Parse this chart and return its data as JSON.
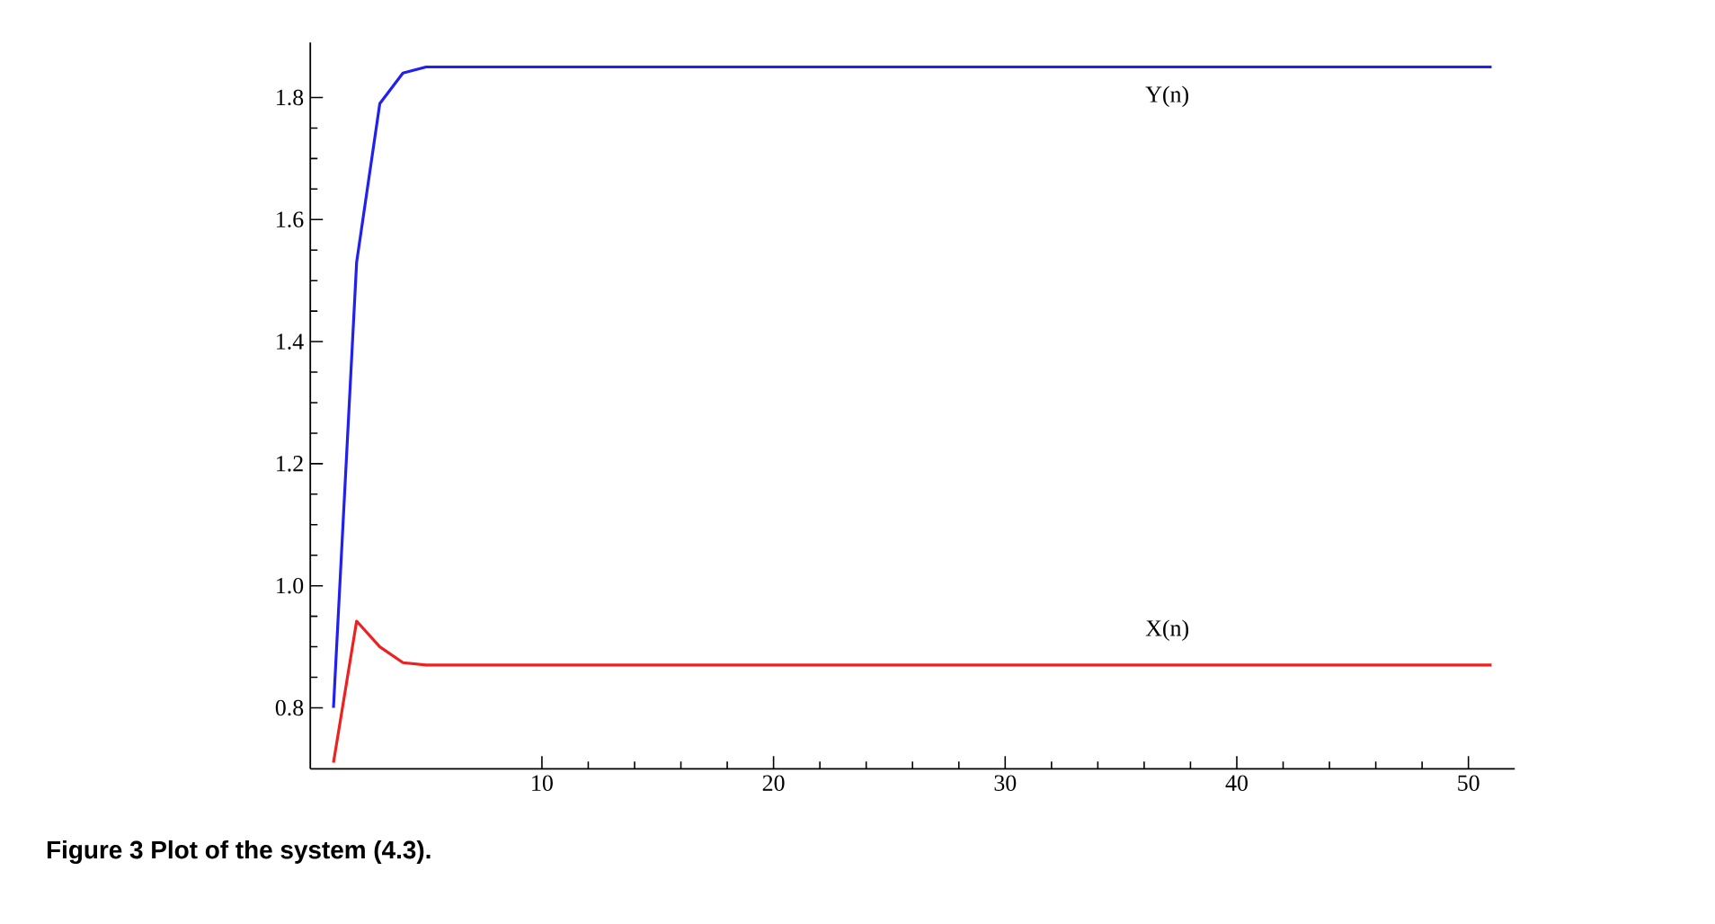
{
  "chart_data": {
    "type": "line",
    "x": [
      1,
      2,
      3,
      4,
      5,
      6,
      7,
      8,
      9,
      10,
      11,
      12,
      13,
      14,
      15,
      16,
      17,
      18,
      19,
      20,
      21,
      22,
      23,
      24,
      25,
      26,
      27,
      28,
      29,
      30,
      31,
      32,
      33,
      34,
      35,
      36,
      37,
      38,
      39,
      40,
      41,
      42,
      43,
      44,
      45,
      46,
      47,
      48,
      49,
      50,
      51
    ],
    "series": [
      {
        "name": "Y(n)",
        "color": "#2020f0",
        "values": [
          0.8,
          1.53,
          1.79,
          1.84,
          1.85,
          1.85,
          1.85,
          1.85,
          1.85,
          1.85,
          1.85,
          1.85,
          1.85,
          1.85,
          1.85,
          1.85,
          1.85,
          1.85,
          1.85,
          1.85,
          1.85,
          1.85,
          1.85,
          1.85,
          1.85,
          1.85,
          1.85,
          1.85,
          1.85,
          1.85,
          1.85,
          1.85,
          1.85,
          1.85,
          1.85,
          1.85,
          1.85,
          1.85,
          1.85,
          1.85,
          1.85,
          1.85,
          1.85,
          1.85,
          1.85,
          1.85,
          1.85,
          1.85,
          1.85,
          1.85,
          1.85
        ]
      },
      {
        "name": "X(n)",
        "color": "#f02020",
        "values": [
          0.71,
          0.942,
          0.9,
          0.874,
          0.87,
          0.87,
          0.87,
          0.87,
          0.87,
          0.87,
          0.87,
          0.87,
          0.87,
          0.87,
          0.87,
          0.87,
          0.87,
          0.87,
          0.87,
          0.87,
          0.87,
          0.87,
          0.87,
          0.87,
          0.87,
          0.87,
          0.87,
          0.87,
          0.87,
          0.87,
          0.87,
          0.87,
          0.87,
          0.87,
          0.87,
          0.87,
          0.87,
          0.87,
          0.87,
          0.87,
          0.87,
          0.87,
          0.87,
          0.87,
          0.87,
          0.87,
          0.87,
          0.87,
          0.87,
          0.87,
          0.87
        ]
      }
    ],
    "xlim": [
      0,
      52
    ],
    "ylim": [
      0.7,
      1.89
    ],
    "xticks": [
      10,
      20,
      30,
      40,
      50
    ],
    "yticks": [
      {
        "value": 0.8,
        "label": "0.8"
      },
      {
        "value": 1.0,
        "label": "1.0"
      },
      {
        "value": 1.2,
        "label": "1.2"
      },
      {
        "value": 1.4,
        "label": "1.4"
      },
      {
        "value": 1.6,
        "label": "1.6"
      },
      {
        "value": 1.8,
        "label": "1.8"
      }
    ],
    "grid": false,
    "legend": false,
    "marker": "none",
    "line_style": "solid",
    "annotations": [
      "**Figure 3  Plot of the system (4.3).**"
    ]
  }
}
